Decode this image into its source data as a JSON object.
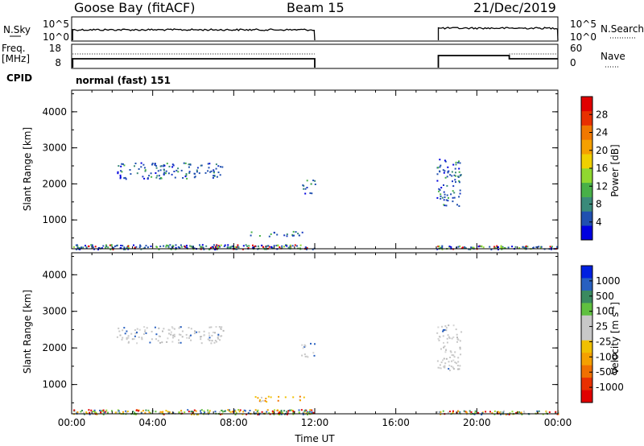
{
  "header": {
    "station": "Goose Bay (fitACF)",
    "beam": "Beam 15",
    "date": "21/Dec/2019"
  },
  "nsky_panel": {
    "label": "N.Sky",
    "left_ticks": [
      "10^5",
      "10^0"
    ],
    "right_ticks": [
      "10^5",
      "10^0"
    ],
    "right_label": "N.Search",
    "periods": [
      [
        0.05,
        12.0
      ],
      [
        18.1,
        24.0
      ]
    ]
  },
  "freq_panel": {
    "label_line1": "Freq.",
    "label_line2": "[MHz]",
    "left_ticks": [
      "18",
      "8"
    ],
    "right_ticks": [
      "60",
      "0"
    ],
    "right_label": "Nave",
    "cpid_label": "CPID",
    "cpid_text": "normal (fast) 151"
  },
  "chart_data": [
    {
      "type": "heatmap",
      "title": "",
      "quantity": "Power",
      "xlabel": "",
      "ylabel": "Slant Range [km]",
      "xlim": [
        0,
        24
      ],
      "ylim": [
        200,
        4600
      ],
      "yticks": [
        "1000",
        "2000",
        "3000",
        "4000"
      ],
      "colorbar_label": "Power [dB]",
      "colorbar_ticks": [
        "4",
        "8",
        "12",
        "16",
        "20",
        "24",
        "28"
      ],
      "colorbar_colors": [
        "#0000e0",
        "#2050b0",
        "#3a8a7a",
        "#48b048",
        "#90d830",
        "#f0d000",
        "#f5a000",
        "#f07800",
        "#e83000",
        "#e00000"
      ],
      "echo_regions": [
        {
          "t": [
            0.05,
            12.0
          ],
          "r": [
            200,
            330
          ],
          "level": "mixed"
        },
        {
          "t": [
            2.2,
            7.5
          ],
          "r": [
            2150,
            2600
          ],
          "level": "low"
        },
        {
          "t": [
            11.3,
            12.0
          ],
          "r": [
            1750,
            2150
          ],
          "level": "low"
        },
        {
          "t": [
            8.8,
            11.5
          ],
          "r": [
            550,
            700
          ],
          "level": "low"
        },
        {
          "t": [
            18.0,
            19.2
          ],
          "r": [
            1400,
            2700
          ],
          "level": "low"
        },
        {
          "t": [
            18.0,
            24.0
          ],
          "r": [
            200,
            300
          ],
          "level": "mixed"
        }
      ]
    },
    {
      "type": "heatmap",
      "title": "",
      "quantity": "Velocity",
      "xlabel": "Time UT",
      "ylabel": "Slant Range [km]",
      "xlim": [
        0,
        24
      ],
      "ylim": [
        200,
        4600
      ],
      "xticks": [
        "00:00",
        "04:00",
        "08:00",
        "12:00",
        "16:00",
        "20:00",
        "00:00"
      ],
      "yticks": [
        "1000",
        "2000",
        "3000",
        "4000"
      ],
      "colorbar_label": "Velocity [m s",
      "colorbar_label_sup": "-1",
      "colorbar_label_end": "]",
      "colorbar_ticks": [
        "1000",
        "500",
        "100",
        "25",
        "-25",
        "-100",
        "-500",
        "-1000"
      ],
      "colorbar_colors": [
        "#0020e0",
        "#2860c0",
        "#3a8a60",
        "#60c040",
        "#c8c8c8",
        "#c8c8c8",
        "#f0c000",
        "#f5a000",
        "#f07000",
        "#e83000",
        "#e00000"
      ],
      "echo_regions": [
        {
          "t": [
            0.05,
            12.0
          ],
          "r": [
            200,
            330
          ],
          "level": "mixed"
        },
        {
          "t": [
            2.2,
            7.5
          ],
          "r": [
            2150,
            2600
          ],
          "level": "gray"
        },
        {
          "t": [
            11.3,
            12.0
          ],
          "r": [
            1750,
            2150
          ],
          "level": "gray"
        },
        {
          "t": [
            8.8,
            11.5
          ],
          "r": [
            550,
            700
          ],
          "level": "warm"
        },
        {
          "t": [
            18.0,
            19.2
          ],
          "r": [
            1400,
            2700
          ],
          "level": "gray"
        },
        {
          "t": [
            18.0,
            24.0
          ],
          "r": [
            200,
            300
          ],
          "level": "mixed"
        }
      ]
    }
  ]
}
